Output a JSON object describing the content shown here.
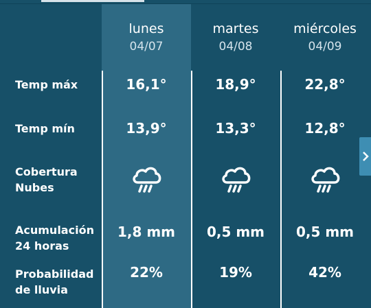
{
  "days": [
    {
      "name": "lunes",
      "date": "04/07"
    },
    {
      "name": "martes",
      "date": "04/08"
    },
    {
      "name": "miércoles",
      "date": "04/09"
    }
  ],
  "rows": {
    "temp_max": {
      "label": "Temp máx",
      "values": [
        "16,1°",
        "18,9°",
        "22,8°"
      ]
    },
    "temp_min": {
      "label": "Temp mín",
      "values": [
        "13,9°",
        "13,3°",
        "12,8°"
      ]
    },
    "cloud": {
      "label": "Cobertura\nNubes",
      "icons": [
        "rain-cloud-icon",
        "rain-cloud-icon",
        "rain-cloud-icon"
      ]
    },
    "accum": {
      "label": "Acumulación\n24 horas",
      "values": [
        "1,8 mm",
        "0,5 mm",
        "0,5 mm"
      ]
    },
    "prob": {
      "label": "Probabilidad\nde lluvia",
      "values": [
        "22%",
        "19%",
        "42%"
      ]
    }
  },
  "nav": {
    "next_icon": "chevron-right-icon"
  },
  "colors": {
    "background": "#175068",
    "selected_column": "#2e6a84",
    "nav_button": "#3e8eb3"
  }
}
